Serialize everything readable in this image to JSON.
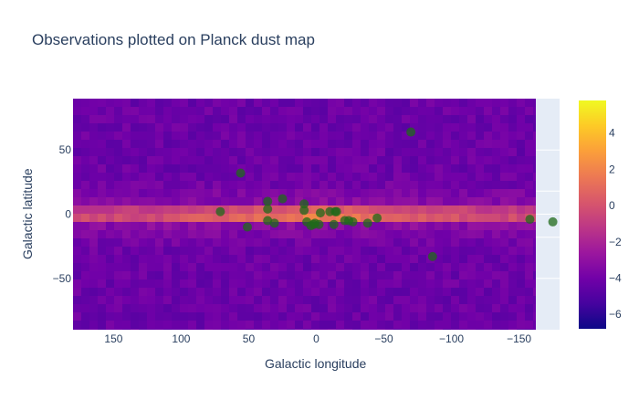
{
  "chart_data": {
    "type": "scatter",
    "title": "Observations plotted on Planck dust map",
    "xlabel": "Galactic longitude",
    "ylabel": "Galactic latitude",
    "xlim": [
      180,
      -180
    ],
    "ylim": [
      -90,
      90
    ],
    "x_axis_reversed": true,
    "xticks": [
      150,
      100,
      50,
      0,
      -50,
      -100,
      -150
    ],
    "xtick_labels": [
      "150",
      "100",
      "50",
      "0",
      "−50",
      "−100",
      "−150"
    ],
    "yticks": [
      50,
      0,
      -50
    ],
    "ytick_labels": [
      "50",
      "0",
      "−50"
    ],
    "grid": true,
    "heatmap_background": "Planck dust map (log intensity)",
    "colorbar": {
      "range": [
        -6.8,
        5.8
      ],
      "ticks": [
        4,
        2,
        0,
        -2,
        -4,
        -6
      ],
      "tick_labels": [
        "4",
        "2",
        "0",
        "−2",
        "−4",
        "−6"
      ],
      "colorscale": [
        "#0d0887",
        "#46039f",
        "#7201a8",
        "#9c179e",
        "#bd3786",
        "#d8576b",
        "#ed7953",
        "#fb9f3a",
        "#fdca26",
        "#f0f921"
      ]
    },
    "marker_color": "#1f6a1a",
    "series": [
      {
        "x": [
          -70,
          56,
          71,
          51,
          36,
          25,
          36,
          36,
          31,
          9,
          9,
          7,
          2,
          -3,
          4,
          1,
          -2,
          -10,
          -14,
          -15,
          -13,
          -21,
          -24,
          -27,
          -38,
          -45,
          -158,
          -175,
          -86
        ],
        "y": [
          64,
          32,
          2,
          -10,
          10,
          12,
          4,
          -5,
          -7,
          8,
          3,
          -6,
          -8,
          1,
          -9,
          -7,
          -8,
          2,
          2,
          2,
          -8,
          -5,
          -5,
          -6,
          -7,
          -3,
          -4,
          -6,
          -33
        ]
      }
    ]
  }
}
